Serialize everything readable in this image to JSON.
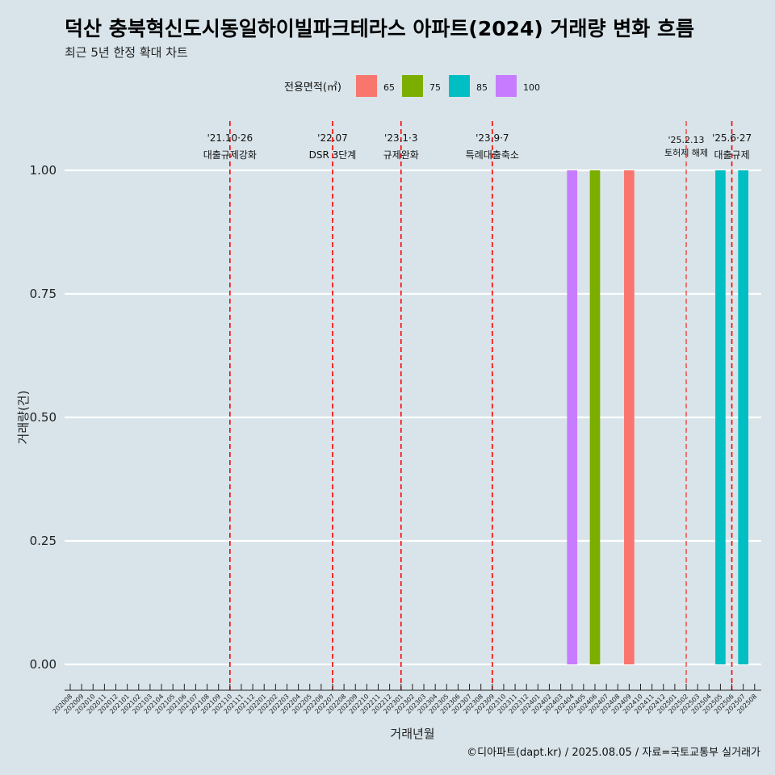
{
  "chart_data": {
    "type": "bar",
    "title": "덕산 충북혁신도시동일하이빌파크테라스 아파트(2024) 거래량 변화 흐름",
    "subtitle": "최근 5년 한정 확대 차트",
    "xlabel": "거래년월",
    "ylabel": "거래량(건)",
    "ylim": [
      0,
      1
    ],
    "yticks": [
      0,
      0.25,
      0.5,
      0.75,
      1
    ],
    "ytick_labels": [
      "0.00",
      "0.25",
      "0.50",
      "0.75",
      "1.00"
    ],
    "categories": [
      "202008",
      "202009",
      "202010",
      "202011",
      "202012",
      "202101",
      "202102",
      "202103",
      "202104",
      "202105",
      "202106",
      "202107",
      "202108",
      "202109",
      "202110",
      "202111",
      "202112",
      "202201",
      "202202",
      "202203",
      "202204",
      "202205",
      "202206",
      "202207",
      "202208",
      "202209",
      "202210",
      "202211",
      "202212",
      "202301",
      "202302",
      "202303",
      "202304",
      "202305",
      "202306",
      "202307",
      "202308",
      "202309",
      "202310",
      "202311",
      "202312",
      "202401",
      "202402",
      "202403",
      "202404",
      "202405",
      "202406",
      "202407",
      "202408",
      "202409",
      "202410",
      "202411",
      "202412",
      "202501",
      "202502",
      "202503",
      "202504",
      "202505",
      "202506",
      "202507",
      "202508"
    ],
    "legend_title": "전용면적(㎡)",
    "legend_position": "top",
    "grid": true,
    "series": [
      {
        "name": "65",
        "color": "#f8766d",
        "points": [
          {
            "x": "202409",
            "y": 1
          }
        ]
      },
      {
        "name": "75",
        "color": "#7cae00",
        "points": [
          {
            "x": "202406",
            "y": 1
          }
        ]
      },
      {
        "name": "85",
        "color": "#00bfc4",
        "points": [
          {
            "x": "202505",
            "y": 1
          },
          {
            "x": "202507",
            "y": 1
          }
        ]
      },
      {
        "name": "100",
        "color": "#c77cff",
        "points": [
          {
            "x": "202404",
            "y": 1
          }
        ]
      }
    ],
    "annotations": [
      {
        "x": "202110",
        "date": "'21.10·26",
        "label": "대출규제강화"
      },
      {
        "x": "202207",
        "date": "'22.07",
        "label": "DSR 3단계"
      },
      {
        "x": "202301",
        "date": "'23.1·3",
        "label": "규제완화"
      },
      {
        "x": "202309",
        "date": "'23.9·7",
        "label": "특례대출축소"
      },
      {
        "x": "202502",
        "date": "'25.2.13",
        "label": "토허제 해제"
      },
      {
        "x": "202506",
        "date": "'25.6·27",
        "label": "대출규제"
      }
    ],
    "caption": "©디아파트(dapt.kr) / 2025.08.05 / 자료=국토교통부 실거래가"
  }
}
